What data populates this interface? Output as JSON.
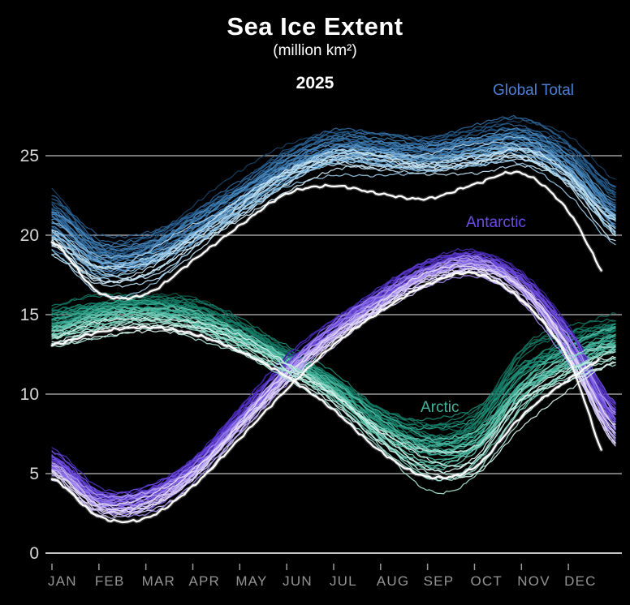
{
  "page": {
    "background": "#000000"
  },
  "chart_data": {
    "type": "line",
    "title": "Sea Ice Extent",
    "subtitle": "(million km²)",
    "year_label": "2025",
    "unit": "million km²",
    "ylim": [
      0,
      28
    ],
    "yticks": [
      0,
      5,
      10,
      15,
      20,
      25
    ],
    "months": [
      "JAN",
      "FEB",
      "MAR",
      "APR",
      "MAY",
      "JUN",
      "JUL",
      "AUG",
      "SEP",
      "OCT",
      "NOV",
      "DEC"
    ],
    "grid": true,
    "legend_position": "inline-annotations",
    "knot_note": "values are monthly knots Jan-1 .. Dec-1 plus Dec-31, million km²",
    "axis_style": {
      "grid_color": "#9e9e9e",
      "axis_color": "#c2c2c2",
      "ytick_label_color": "#d6d6d6",
      "xtick_label_color": "#949494",
      "tick_color": "#9a9a9a"
    },
    "series": [
      {
        "id": "global-total",
        "label": "Global Total",
        "label_color": "#4d7fd2",
        "years_drawn": 46,
        "trend": 0.75,
        "palette": [
          "#173f63",
          "#2b6395",
          "#4f8ec4",
          "#86bade",
          "#c9e6f4"
        ],
        "band_center": [
          20.6,
          18.3,
          18.5,
          20.2,
          22.2,
          24.2,
          25.4,
          25.2,
          24.9,
          25.3,
          25.7,
          24.2,
          21.3
        ],
        "band_halfwidth": [
          2.0,
          1.6,
          1.5,
          1.4,
          1.3,
          1.3,
          1.3,
          1.3,
          1.3,
          1.3,
          1.3,
          1.6,
          1.9
        ],
        "current_year": {
          "label": "2025",
          "color": "#ffffff",
          "values": [
            19.6,
            16.4,
            16.3,
            18.4,
            20.6,
            22.6,
            23.1,
            22.6,
            22.3,
            23.2,
            23.9,
            21.5,
            16.6
          ],
          "end_t": 11.7
        }
      },
      {
        "id": "antarctic",
        "label": "Antarctic",
        "label_color": "#6a4de0",
        "years_drawn": 46,
        "trend": 0.55,
        "palette": [
          "#3f22a0",
          "#5c3ad2",
          "#8161e6",
          "#b4a0f0",
          "#e6def9"
        ],
        "band_center": [
          5.6,
          3.3,
          3.4,
          5.2,
          8.3,
          11.4,
          14.0,
          16.0,
          17.6,
          18.2,
          16.8,
          13.3,
          8.2
        ],
        "band_halfwidth": [
          1.1,
          1.0,
          1.0,
          1.0,
          1.0,
          1.0,
          1.0,
          1.0,
          1.0,
          1.1,
          1.2,
          1.5,
          1.7
        ],
        "current_year": {
          "label": "2025",
          "color": "#ffffff",
          "values": [
            4.7,
            2.3,
            2.2,
            4.2,
            7.2,
            10.3,
            13.1,
            15.2,
            16.9,
            17.6,
            15.9,
            12.2,
            4.6
          ],
          "end_t": 11.7
        }
      },
      {
        "id": "arctic",
        "label": "Arctic",
        "label_color": "#45b39c",
        "years_drawn": 46,
        "trend": 0.8,
        "palette": [
          "#0d5949",
          "#17826c",
          "#36ab92",
          "#7fd2bf",
          "#d8f3ec"
        ],
        "band_center": [
          14.2,
          15.0,
          15.3,
          14.9,
          13.7,
          12.1,
          10.3,
          7.9,
          6.5,
          7.2,
          10.8,
          12.4,
          13.4
        ],
        "band_halfwidth": [
          1.3,
          1.2,
          1.1,
          1.1,
          1.0,
          0.9,
          1.0,
          1.4,
          2.0,
          2.1,
          2.1,
          1.7,
          1.5
        ],
        "current_year": {
          "label": "2025",
          "color": "#ffffff",
          "values": [
            13.1,
            13.9,
            14.2,
            13.8,
            12.7,
            11.1,
            9.0,
            6.4,
            4.8,
            5.4,
            8.6,
            10.9,
            12.6
          ],
          "end_t": 11.65
        }
      }
    ]
  }
}
